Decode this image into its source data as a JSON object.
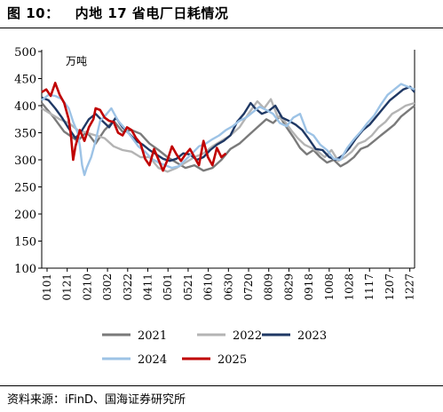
{
  "header": {
    "figure_label": "图 10：",
    "figure_title": "内地 17 省电厂日耗情况"
  },
  "footer": {
    "source": "资料来源：iFinD、国海证券研究所"
  },
  "colors": {
    "2021": "#7a7a7a",
    "2022": "#b4b4b4",
    "2023": "#1f3864",
    "2024": "#9dc3e6",
    "2025": "#c00000"
  },
  "chart_data": {
    "type": "line",
    "title": "",
    "unit_label": "万吨",
    "xlabel": "",
    "ylabel": "",
    "ylim": [
      100,
      500
    ],
    "yticks": [
      100,
      150,
      200,
      250,
      300,
      350,
      400,
      450,
      500
    ],
    "xtick_labels": [
      "0101",
      "0121",
      "0210",
      "0302",
      "0322",
      "0411",
      "0501",
      "0521",
      "0610",
      "0630",
      "0720",
      "0809",
      "0829",
      "0918",
      "1008",
      "1028",
      "1117",
      "1207",
      "1227"
    ],
    "grid": false,
    "legend_position": "bottom",
    "series": [
      {
        "name": "2021",
        "points": [
          [
            0,
            405
          ],
          [
            5,
            380
          ],
          [
            10,
            352
          ],
          [
            16,
            335
          ],
          [
            20,
            352
          ],
          [
            24,
            330
          ],
          [
            28,
            355
          ],
          [
            32,
            372
          ],
          [
            36,
            352
          ],
          [
            40,
            355
          ],
          [
            44,
            348
          ],
          [
            48,
            330
          ],
          [
            52,
            318
          ],
          [
            56,
            305
          ],
          [
            60,
            295
          ],
          [
            64,
            285
          ],
          [
            68,
            290
          ],
          [
            72,
            280
          ],
          [
            76,
            285
          ],
          [
            80,
            300
          ],
          [
            84,
            320
          ],
          [
            88,
            330
          ],
          [
            92,
            345
          ],
          [
            96,
            360
          ],
          [
            100,
            375
          ],
          [
            103,
            368
          ],
          [
            106,
            380
          ],
          [
            109,
            360
          ],
          [
            112,
            342
          ],
          [
            115,
            322
          ],
          [
            118,
            310
          ],
          [
            121,
            318
          ],
          [
            124,
            305
          ],
          [
            127,
            295
          ],
          [
            130,
            300
          ],
          [
            133,
            288
          ],
          [
            136,
            295
          ],
          [
            139,
            305
          ],
          [
            142,
            320
          ],
          [
            145,
            325
          ],
          [
            148,
            335
          ],
          [
            151,
            345
          ],
          [
            154,
            355
          ],
          [
            157,
            365
          ],
          [
            160,
            380
          ],
          [
            163,
            390
          ],
          [
            166,
            400
          ]
        ]
      },
      {
        "name": "2022",
        "points": [
          [
            0,
            395
          ],
          [
            4,
            385
          ],
          [
            8,
            375
          ],
          [
            12,
            368
          ],
          [
            16,
            355
          ],
          [
            20,
            350
          ],
          [
            24,
            345
          ],
          [
            28,
            340
          ],
          [
            32,
            325
          ],
          [
            36,
            318
          ],
          [
            40,
            315
          ],
          [
            44,
            305
          ],
          [
            48,
            305
          ],
          [
            52,
            285
          ],
          [
            56,
            278
          ],
          [
            60,
            285
          ],
          [
            64,
            295
          ],
          [
            68,
            305
          ],
          [
            72,
            312
          ],
          [
            76,
            325
          ],
          [
            80,
            335
          ],
          [
            84,
            345
          ],
          [
            88,
            360
          ],
          [
            92,
            385
          ],
          [
            96,
            408
          ],
          [
            99,
            395
          ],
          [
            102,
            412
          ],
          [
            105,
            380
          ],
          [
            108,
            372
          ],
          [
            111,
            355
          ],
          [
            114,
            340
          ],
          [
            117,
            328
          ],
          [
            120,
            322
          ],
          [
            123,
            315
          ],
          [
            126,
            305
          ],
          [
            129,
            318
          ],
          [
            132,
            298
          ],
          [
            135,
            305
          ],
          [
            138,
            315
          ],
          [
            141,
            330
          ],
          [
            144,
            335
          ],
          [
            147,
            345
          ],
          [
            150,
            360
          ],
          [
            153,
            370
          ],
          [
            156,
            385
          ],
          [
            159,
            392
          ],
          [
            162,
            400
          ],
          [
            166,
            405
          ]
        ]
      },
      {
        "name": "2023",
        "points": [
          [
            0,
            415
          ],
          [
            3,
            410
          ],
          [
            6,
            395
          ],
          [
            9,
            378
          ],
          [
            12,
            358
          ],
          [
            15,
            340
          ],
          [
            18,
            355
          ],
          [
            21,
            375
          ],
          [
            24,
            385
          ],
          [
            27,
            372
          ],
          [
            30,
            360
          ],
          [
            33,
            378
          ],
          [
            36,
            360
          ],
          [
            39,
            348
          ],
          [
            42,
            335
          ],
          [
            45,
            328
          ],
          [
            48,
            318
          ],
          [
            51,
            310
          ],
          [
            54,
            302
          ],
          [
            57,
            298
          ],
          [
            60,
            302
          ],
          [
            63,
            312
          ],
          [
            66,
            310
          ],
          [
            69,
            300
          ],
          [
            72,
            305
          ],
          [
            75,
            318
          ],
          [
            78,
            328
          ],
          [
            81,
            335
          ],
          [
            84,
            345
          ],
          [
            87,
            370
          ],
          [
            90,
            385
          ],
          [
            93,
            405
          ],
          [
            95,
            395
          ],
          [
            98,
            385
          ],
          [
            101,
            390
          ],
          [
            104,
            400
          ],
          [
            107,
            378
          ],
          [
            110,
            372
          ],
          [
            113,
            365
          ],
          [
            116,
            355
          ],
          [
            119,
            338
          ],
          [
            122,
            320
          ],
          [
            125,
            318
          ],
          [
            128,
            305
          ],
          [
            131,
            300
          ],
          [
            134,
            308
          ],
          [
            137,
            322
          ],
          [
            140,
            340
          ],
          [
            143,
            355
          ],
          [
            146,
            365
          ],
          [
            149,
            380
          ],
          [
            152,
            395
          ],
          [
            155,
            410
          ],
          [
            158,
            420
          ],
          [
            161,
            430
          ],
          [
            164,
            435
          ],
          [
            166,
            425
          ]
        ]
      },
      {
        "name": "2024",
        "points": [
          [
            0,
            410
          ],
          [
            3,
            420
          ],
          [
            6,
            418
          ],
          [
            9,
            412
          ],
          [
            12,
            395
          ],
          [
            14,
            370
          ],
          [
            16,
            350
          ],
          [
            17,
            325
          ],
          [
            18,
            290
          ],
          [
            19,
            272
          ],
          [
            20,
            285
          ],
          [
            22,
            305
          ],
          [
            24,
            335
          ],
          [
            26,
            372
          ],
          [
            28,
            380
          ],
          [
            31,
            395
          ],
          [
            34,
            372
          ],
          [
            37,
            358
          ],
          [
            40,
            342
          ],
          [
            43,
            325
          ],
          [
            46,
            315
          ],
          [
            49,
            302
          ],
          [
            52,
            295
          ],
          [
            55,
            290
          ],
          [
            58,
            285
          ],
          [
            61,
            288
          ],
          [
            64,
            300
          ],
          [
            67,
            312
          ],
          [
            70,
            325
          ],
          [
            73,
            330
          ],
          [
            76,
            338
          ],
          [
            79,
            345
          ],
          [
            82,
            355
          ],
          [
            85,
            362
          ],
          [
            88,
            372
          ],
          [
            91,
            378
          ],
          [
            94,
            388
          ],
          [
            97,
            398
          ],
          [
            100,
            392
          ],
          [
            103,
            385
          ],
          [
            106,
            368
          ],
          [
            109,
            362
          ],
          [
            112,
            378
          ],
          [
            115,
            385
          ],
          [
            118,
            352
          ],
          [
            121,
            345
          ],
          [
            124,
            328
          ],
          [
            127,
            318
          ],
          [
            130,
            302
          ],
          [
            133,
            300
          ],
          [
            136,
            322
          ],
          [
            139,
            338
          ],
          [
            142,
            352
          ],
          [
            145,
            368
          ],
          [
            148,
            382
          ],
          [
            151,
            402
          ],
          [
            154,
            420
          ],
          [
            157,
            430
          ],
          [
            160,
            440
          ],
          [
            163,
            435
          ],
          [
            166,
            430
          ]
        ]
      },
      {
        "name": "2025",
        "points": [
          [
            0,
            425
          ],
          [
            2,
            430
          ],
          [
            4,
            418
          ],
          [
            6,
            442
          ],
          [
            8,
            420
          ],
          [
            10,
            405
          ],
          [
            12,
            375
          ],
          [
            13,
            345
          ],
          [
            14,
            300
          ],
          [
            15,
            325
          ],
          [
            17,
            355
          ],
          [
            19,
            335
          ],
          [
            21,
            360
          ],
          [
            23,
            375
          ],
          [
            24,
            395
          ],
          [
            26,
            392
          ],
          [
            28,
            378
          ],
          [
            30,
            372
          ],
          [
            32,
            370
          ],
          [
            34,
            350
          ],
          [
            36,
            345
          ],
          [
            38,
            360
          ],
          [
            40,
            355
          ],
          [
            42,
            340
          ],
          [
            44,
            330
          ],
          [
            46,
            302
          ],
          [
            48,
            290
          ],
          [
            50,
            320
          ],
          [
            52,
            300
          ],
          [
            54,
            280
          ],
          [
            56,
            300
          ],
          [
            58,
            325
          ],
          [
            60,
            310
          ],
          [
            62,
            298
          ],
          [
            64,
            310
          ],
          [
            66,
            320
          ],
          [
            68,
            305
          ],
          [
            70,
            290
          ],
          [
            72,
            335
          ],
          [
            74,
            305
          ],
          [
            76,
            290
          ],
          [
            78,
            322
          ],
          [
            80,
            305
          ],
          [
            82,
            312
          ]
        ]
      }
    ]
  }
}
